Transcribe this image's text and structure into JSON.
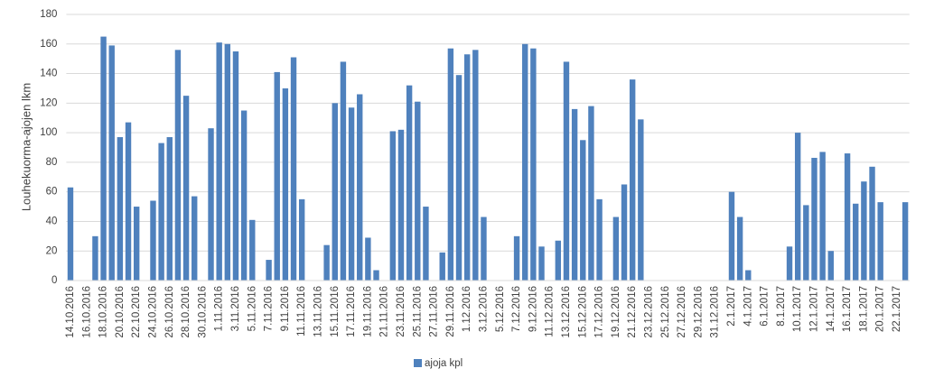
{
  "chart_data": {
    "type": "bar",
    "y_label": "Louhekuorma-ajojen lkm",
    "categories": [
      "14.10.2016",
      null,
      "16.10.2016",
      null,
      "18.10.2016",
      null,
      "20.10.2016",
      null,
      "22.10.2016",
      null,
      "24.10.2016",
      null,
      "26.10.2016",
      null,
      "28.10.2016",
      null,
      "30.10.2016",
      null,
      "1.11.2016",
      null,
      "3.11.2016",
      null,
      "5.11.2016",
      null,
      "7.11.2016",
      null,
      "9.11.2016",
      null,
      "11.11.2016",
      null,
      "13.11.2016",
      null,
      "15.11.2016",
      null,
      "17.11.2016",
      null,
      "19.11.2016",
      null,
      "21.11.2016",
      null,
      "23.11.2016",
      null,
      "25.11.2016",
      null,
      "27.11.2016",
      null,
      "29.11.2016",
      null,
      "1.12.2016",
      null,
      "3.12.2016",
      null,
      "5.12.2016",
      null,
      "7.12.2016",
      null,
      "9.12.2016",
      null,
      "11.12.2016",
      null,
      "13.12.2016",
      null,
      "15.12.2016",
      null,
      "17.12.2016",
      null,
      "19.12.2016",
      null,
      "21.12.2016",
      null,
      "23.12.2016",
      null,
      "25.12.2016",
      null,
      "27.12.2016",
      null,
      "29.12.2016",
      null,
      "31.12.2016",
      null,
      "2.1.2017",
      null,
      "4.1.2017",
      null,
      "6.1.2017",
      null,
      "8.1.2017",
      null,
      "10.1.2017",
      null,
      "12.1.2017",
      null,
      "14.1.2017",
      null,
      "16.1.2017",
      null,
      "18.1.2017",
      null,
      "20.1.2017",
      null,
      "22.1.2017",
      null
    ],
    "series": [
      {
        "name": "ajoja kpl",
        "color": "#4f81bd",
        "values": [
          63,
          0,
          0,
          30,
          165,
          159,
          97,
          107,
          50,
          0,
          54,
          93,
          97,
          156,
          125,
          57,
          0,
          103,
          161,
          160,
          155,
          115,
          41,
          0,
          14,
          141,
          130,
          151,
          55,
          0,
          0,
          24,
          120,
          148,
          117,
          126,
          29,
          7,
          0,
          101,
          102,
          132,
          121,
          50,
          0,
          19,
          157,
          139,
          153,
          156,
          43,
          0,
          0,
          0,
          30,
          160,
          157,
          23,
          0,
          27,
          148,
          116,
          95,
          118,
          55,
          0,
          43,
          65,
          136,
          109,
          0,
          0,
          0,
          0,
          0,
          0,
          0,
          0,
          0,
          0,
          60,
          43,
          7,
          0,
          0,
          0,
          0,
          23,
          100,
          51,
          83,
          87,
          20,
          0,
          86,
          52,
          67,
          77,
          53,
          0,
          0,
          53
        ]
      }
    ],
    "ylim": [
      0,
      180
    ],
    "yticks": [
      0,
      20,
      40,
      60,
      80,
      100,
      120,
      140,
      160,
      180
    ],
    "grid": true,
    "legend": "bottom"
  }
}
